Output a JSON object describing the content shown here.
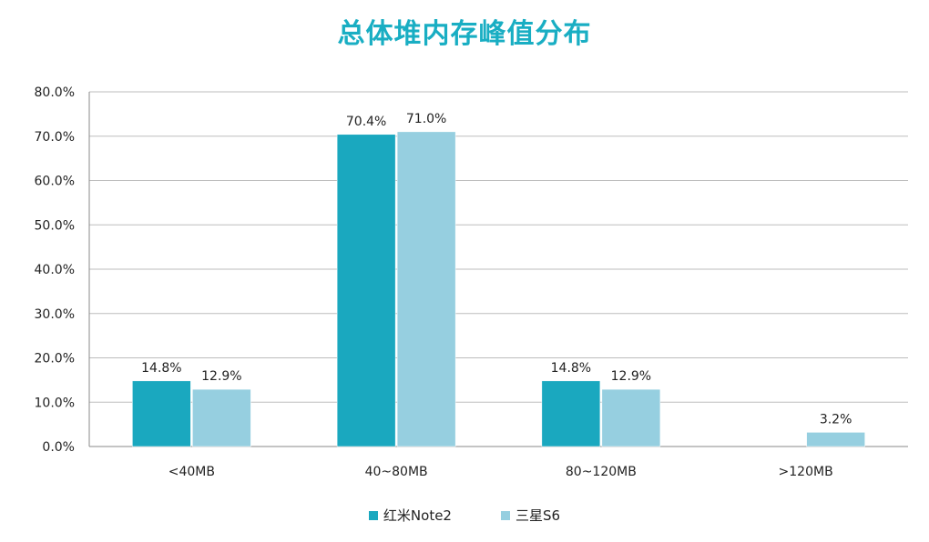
{
  "chart_data": {
    "type": "bar",
    "title": "总体堆内存峰值分布",
    "categories": [
      "<40MB",
      "40~80MB",
      "80~120MB",
      ">120MB"
    ],
    "series": [
      {
        "name": "红米Note2",
        "color": "#1aa8bf",
        "values": [
          14.8,
          70.4,
          14.8,
          null
        ],
        "labels": [
          "14.8%",
          "70.4%",
          "14.8%",
          ""
        ]
      },
      {
        "name": "三星S6",
        "color": "#96cfe0",
        "values": [
          12.9,
          71.0,
          12.9,
          3.2
        ],
        "labels": [
          "12.9%",
          "71.0%",
          "12.9%",
          "3.2%"
        ]
      }
    ],
    "y_ticks": [
      0,
      10,
      20,
      30,
      40,
      50,
      60,
      70,
      80
    ],
    "y_tick_labels": [
      "0.0%",
      "10.0%",
      "20.0%",
      "30.0%",
      "40.0%",
      "50.0%",
      "60.0%",
      "70.0%",
      "80.0%"
    ],
    "ylim": [
      0,
      80
    ],
    "grid": true,
    "legend_position": "bottom"
  }
}
